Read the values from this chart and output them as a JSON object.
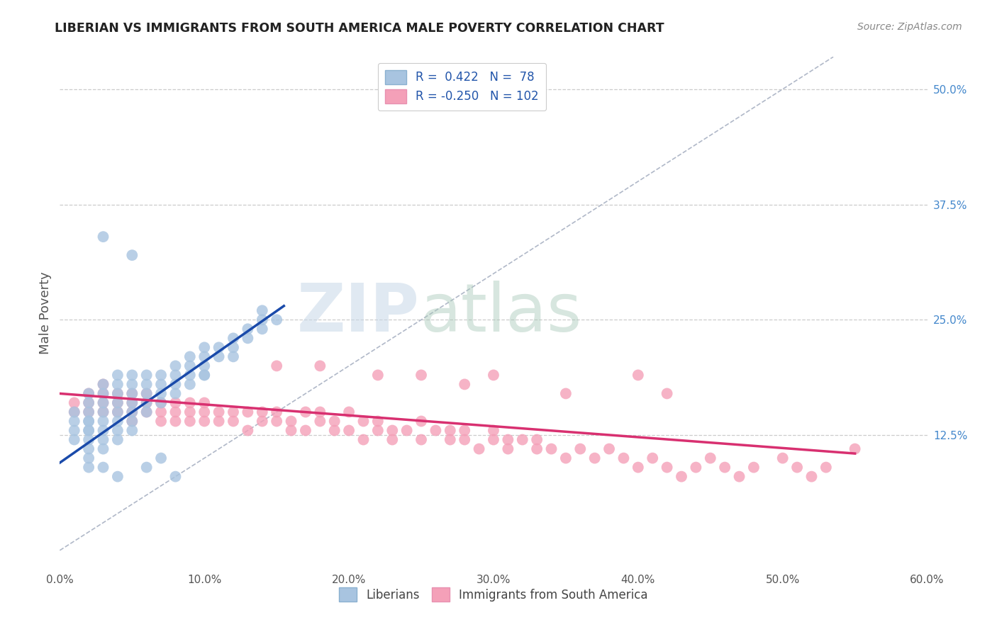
{
  "title": "LIBERIAN VS IMMIGRANTS FROM SOUTH AMERICA MALE POVERTY CORRELATION CHART",
  "source_text": "Source: ZipAtlas.com",
  "ylabel": "Male Poverty",
  "xlim": [
    0.0,
    0.6
  ],
  "ylim": [
    -0.02,
    0.535
  ],
  "xtick_labels": [
    "0.0%",
    "10.0%",
    "20.0%",
    "30.0%",
    "40.0%",
    "50.0%",
    "60.0%"
  ],
  "xtick_vals": [
    0.0,
    0.1,
    0.2,
    0.3,
    0.4,
    0.5,
    0.6
  ],
  "ytick_labels": [
    "12.5%",
    "25.0%",
    "37.5%",
    "50.0%"
  ],
  "ytick_vals": [
    0.125,
    0.25,
    0.375,
    0.5
  ],
  "blue_R": 0.422,
  "blue_N": 78,
  "pink_R": -0.25,
  "pink_N": 102,
  "blue_color": "#a8c4e0",
  "pink_color": "#f4a0b8",
  "blue_line_color": "#1a4aaa",
  "pink_line_color": "#d83070",
  "legend_blue_label": "Liberians",
  "legend_pink_label": "Immigrants from South America",
  "watermark_zip": "ZIP",
  "watermark_atlas": "atlas",
  "background_color": "#ffffff",
  "grid_color": "#cccccc",
  "blue_scatter_x": [
    0.01,
    0.01,
    0.01,
    0.01,
    0.02,
    0.02,
    0.02,
    0.02,
    0.02,
    0.02,
    0.02,
    0.02,
    0.02,
    0.02,
    0.03,
    0.03,
    0.03,
    0.03,
    0.03,
    0.03,
    0.03,
    0.03,
    0.04,
    0.04,
    0.04,
    0.04,
    0.04,
    0.04,
    0.04,
    0.04,
    0.05,
    0.05,
    0.05,
    0.05,
    0.05,
    0.05,
    0.05,
    0.06,
    0.06,
    0.06,
    0.06,
    0.06,
    0.07,
    0.07,
    0.07,
    0.07,
    0.08,
    0.08,
    0.08,
    0.08,
    0.09,
    0.09,
    0.09,
    0.1,
    0.1,
    0.1,
    0.1,
    0.11,
    0.11,
    0.12,
    0.12,
    0.12,
    0.13,
    0.13,
    0.14,
    0.14,
    0.14,
    0.15,
    0.02,
    0.03,
    0.04,
    0.06,
    0.07,
    0.08,
    0.05,
    0.03,
    0.09,
    0.1
  ],
  "blue_scatter_y": [
    0.13,
    0.14,
    0.15,
    0.12,
    0.14,
    0.13,
    0.15,
    0.12,
    0.16,
    0.11,
    0.17,
    0.1,
    0.13,
    0.14,
    0.15,
    0.14,
    0.13,
    0.16,
    0.12,
    0.17,
    0.11,
    0.18,
    0.15,
    0.16,
    0.14,
    0.17,
    0.13,
    0.18,
    0.12,
    0.19,
    0.16,
    0.15,
    0.17,
    0.14,
    0.18,
    0.13,
    0.19,
    0.17,
    0.16,
    0.18,
    0.15,
    0.19,
    0.18,
    0.17,
    0.19,
    0.16,
    0.19,
    0.18,
    0.2,
    0.17,
    0.19,
    0.2,
    0.18,
    0.21,
    0.2,
    0.19,
    0.22,
    0.21,
    0.22,
    0.22,
    0.23,
    0.21,
    0.24,
    0.23,
    0.25,
    0.24,
    0.26,
    0.25,
    0.09,
    0.09,
    0.08,
    0.09,
    0.1,
    0.08,
    0.32,
    0.34,
    0.21,
    0.19
  ],
  "pink_scatter_x": [
    0.01,
    0.01,
    0.02,
    0.02,
    0.02,
    0.03,
    0.03,
    0.03,
    0.03,
    0.04,
    0.04,
    0.04,
    0.05,
    0.05,
    0.05,
    0.05,
    0.06,
    0.06,
    0.06,
    0.07,
    0.07,
    0.07,
    0.08,
    0.08,
    0.08,
    0.09,
    0.09,
    0.09,
    0.1,
    0.1,
    0.1,
    0.11,
    0.11,
    0.12,
    0.12,
    0.13,
    0.13,
    0.14,
    0.14,
    0.15,
    0.15,
    0.16,
    0.16,
    0.17,
    0.17,
    0.18,
    0.18,
    0.19,
    0.19,
    0.2,
    0.2,
    0.21,
    0.21,
    0.22,
    0.22,
    0.23,
    0.23,
    0.24,
    0.25,
    0.25,
    0.26,
    0.27,
    0.27,
    0.28,
    0.28,
    0.29,
    0.3,
    0.3,
    0.31,
    0.31,
    0.32,
    0.33,
    0.33,
    0.34,
    0.35,
    0.36,
    0.37,
    0.38,
    0.39,
    0.4,
    0.41,
    0.42,
    0.43,
    0.44,
    0.45,
    0.46,
    0.47,
    0.48,
    0.5,
    0.51,
    0.52,
    0.53,
    0.15,
    0.18,
    0.22,
    0.25,
    0.28,
    0.3,
    0.35,
    0.4,
    0.42,
    0.55
  ],
  "pink_scatter_y": [
    0.15,
    0.16,
    0.17,
    0.15,
    0.16,
    0.16,
    0.17,
    0.15,
    0.18,
    0.16,
    0.15,
    0.17,
    0.16,
    0.14,
    0.17,
    0.15,
    0.16,
    0.15,
    0.17,
    0.15,
    0.16,
    0.14,
    0.15,
    0.16,
    0.14,
    0.15,
    0.14,
    0.16,
    0.15,
    0.14,
    0.16,
    0.15,
    0.14,
    0.15,
    0.14,
    0.15,
    0.13,
    0.14,
    0.15,
    0.14,
    0.15,
    0.13,
    0.14,
    0.15,
    0.13,
    0.14,
    0.15,
    0.13,
    0.14,
    0.15,
    0.13,
    0.14,
    0.12,
    0.13,
    0.14,
    0.13,
    0.12,
    0.13,
    0.14,
    0.12,
    0.13,
    0.12,
    0.13,
    0.12,
    0.13,
    0.11,
    0.12,
    0.13,
    0.12,
    0.11,
    0.12,
    0.11,
    0.12,
    0.11,
    0.1,
    0.11,
    0.1,
    0.11,
    0.1,
    0.09,
    0.1,
    0.09,
    0.08,
    0.09,
    0.1,
    0.09,
    0.08,
    0.09,
    0.1,
    0.09,
    0.08,
    0.09,
    0.2,
    0.2,
    0.19,
    0.19,
    0.18,
    0.19,
    0.17,
    0.19,
    0.17,
    0.11
  ],
  "blue_trend_x": [
    0.0,
    0.155
  ],
  "blue_trend_y": [
    0.095,
    0.265
  ],
  "pink_trend_x": [
    0.0,
    0.55
  ],
  "pink_trend_y": [
    0.17,
    0.105
  ]
}
